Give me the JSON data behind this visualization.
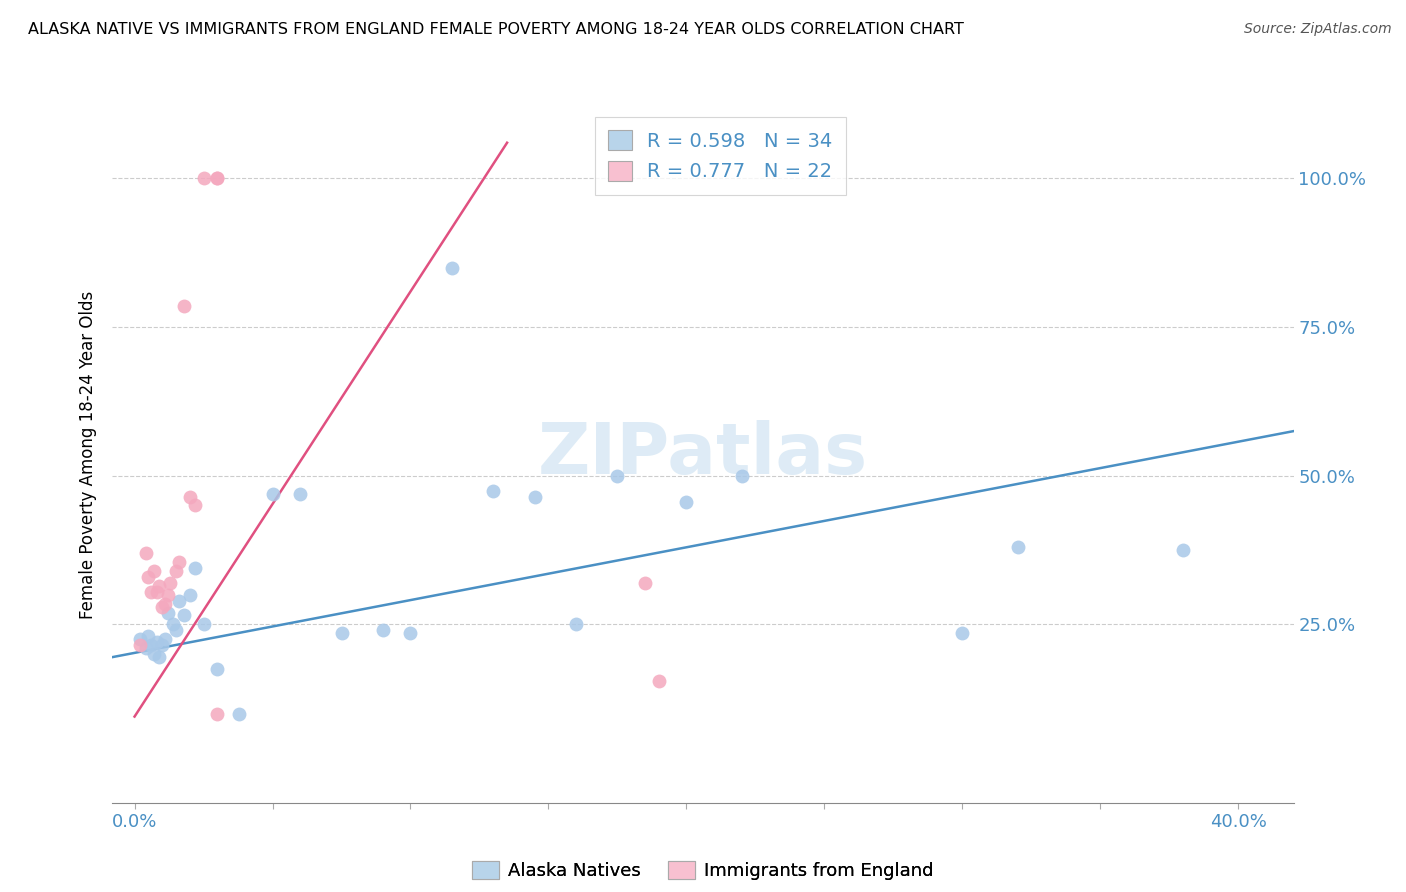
{
  "title": "ALASKA NATIVE VS IMMIGRANTS FROM ENGLAND FEMALE POVERTY AMONG 18-24 YEAR OLDS CORRELATION CHART",
  "source": "Source: ZipAtlas.com",
  "ylabel": "Female Poverty Among 18-24 Year Olds",
  "legend_label_blue": "Alaska Natives",
  "legend_label_pink": "Immigrants from England",
  "blue_color": "#a8c8e8",
  "pink_color": "#f4a8be",
  "blue_line_color": "#4a90c4",
  "pink_line_color": "#e05080",
  "blue_fill_color": "#b8d4ea",
  "pink_fill_color": "#f8c0d0",
  "watermark_color": "#c8dff0",
  "blue_scatter_x": [
    0.002,
    0.004,
    0.005,
    0.006,
    0.007,
    0.008,
    0.009,
    0.01,
    0.011,
    0.012,
    0.014,
    0.015,
    0.016,
    0.018,
    0.02,
    0.022,
    0.025,
    0.03,
    0.038,
    0.05,
    0.06,
    0.075,
    0.09,
    0.1,
    0.115,
    0.13,
    0.145,
    0.16,
    0.175,
    0.2,
    0.22,
    0.3,
    0.32,
    0.38
  ],
  "blue_scatter_y": [
    0.225,
    0.21,
    0.23,
    0.215,
    0.2,
    0.22,
    0.195,
    0.215,
    0.225,
    0.27,
    0.25,
    0.24,
    0.29,
    0.265,
    0.3,
    0.345,
    0.25,
    0.175,
    0.1,
    0.47,
    0.47,
    0.235,
    0.24,
    0.235,
    0.85,
    0.475,
    0.465,
    0.25,
    0.5,
    0.455,
    0.5,
    0.235,
    0.38,
    0.375
  ],
  "pink_scatter_x": [
    0.002,
    0.004,
    0.005,
    0.006,
    0.007,
    0.008,
    0.009,
    0.01,
    0.011,
    0.012,
    0.013,
    0.015,
    0.016,
    0.018,
    0.02,
    0.022,
    0.025,
    0.03,
    0.03,
    0.03,
    0.185,
    0.19
  ],
  "pink_scatter_y": [
    0.215,
    0.37,
    0.33,
    0.305,
    0.34,
    0.305,
    0.315,
    0.28,
    0.285,
    0.3,
    0.32,
    0.34,
    0.355,
    0.785,
    0.465,
    0.45,
    1.0,
    1.0,
    1.0,
    0.1,
    0.32,
    0.155
  ],
  "xlim": [
    -0.008,
    0.42
  ],
  "ylim": [
    -0.05,
    1.12
  ],
  "blue_line_x": [
    -0.008,
    0.42
  ],
  "blue_line_y": [
    0.195,
    0.575
  ],
  "pink_line_x": [
    0.0,
    0.135
  ],
  "pink_line_y": [
    0.095,
    1.06
  ],
  "x_tick_positions": [
    0.0,
    0.05,
    0.1,
    0.15,
    0.2,
    0.25,
    0.3,
    0.35,
    0.4
  ],
  "y_tick_positions": [
    0.25,
    0.5,
    0.75,
    1.0
  ]
}
